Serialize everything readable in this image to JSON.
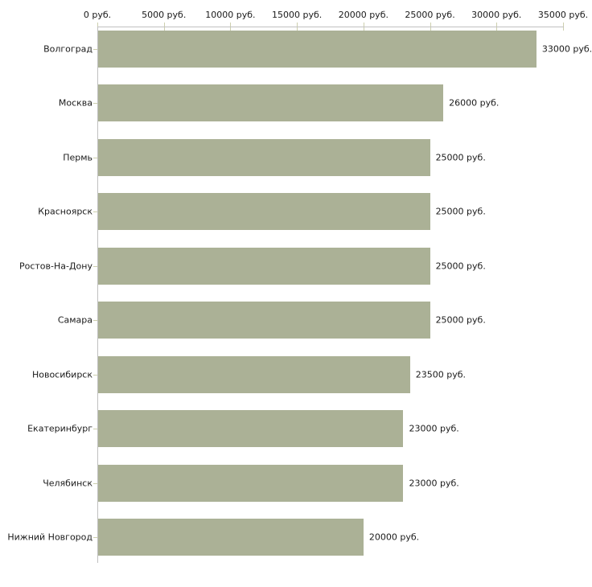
{
  "chart_data": {
    "type": "bar",
    "orientation": "horizontal",
    "title": "",
    "xlabel": "",
    "ylabel": "",
    "categories": [
      "Волгоград",
      "Москва",
      "Пермь",
      "Красноярск",
      "Ростов-На-Дону",
      "Самара",
      "Новосибирск",
      "Екатеринбург",
      "Челябинск",
      "Нижний Новгород"
    ],
    "values": [
      33000,
      26000,
      25000,
      25000,
      25000,
      25000,
      23500,
      23000,
      23000,
      20000
    ],
    "value_labels": [
      "33000 руб.",
      "26000 руб.",
      "25000 руб.",
      "25000 руб.",
      "25000 руб.",
      "25000 руб.",
      "23500 руб.",
      "23000 руб.",
      "23000 руб.",
      "20000 руб."
    ],
    "x_axis": {
      "position": "top",
      "max": 35000,
      "ticks": [
        0,
        5000,
        10000,
        15000,
        20000,
        25000,
        30000,
        35000
      ],
      "tick_labels": [
        "0 руб.",
        "5000 руб.",
        "10000 руб.",
        "15000 руб.",
        "20000 руб.",
        "25000 руб.",
        "30000 руб.",
        "35000 руб."
      ]
    },
    "grid": "off",
    "legend": "none",
    "colors": {
      "bar": "#abb196",
      "axis_line": "#c0c0c0",
      "tick_mark": "#cdcfae",
      "text": "#1a1a1a",
      "background": "#ffffff"
    }
  }
}
